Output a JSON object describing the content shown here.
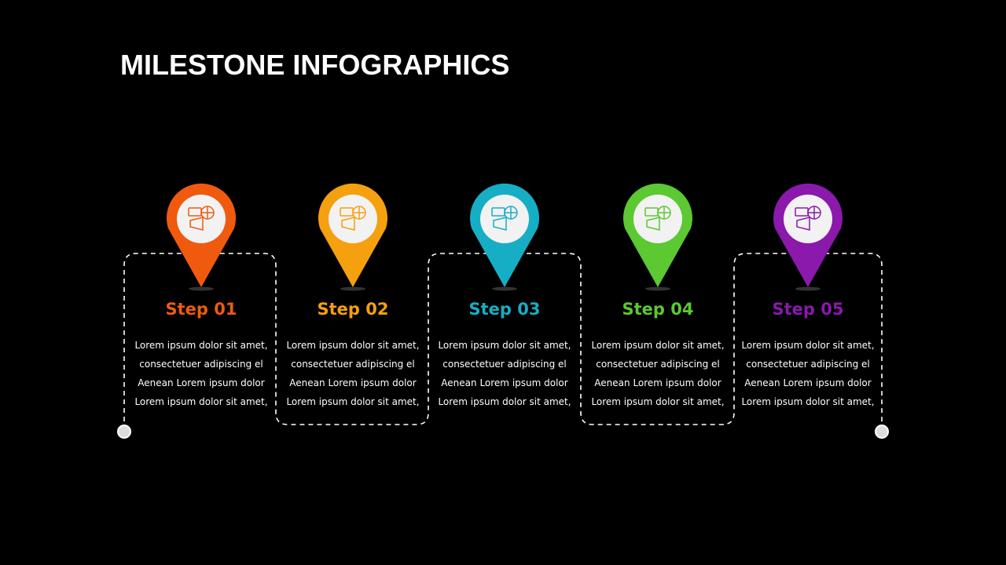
{
  "title": "MILESTONE INFOGRAPHICS",
  "steps": [
    {
      "label": "Step 01",
      "color": "#f05a0f",
      "icon": "ads-megaphone-globe-icon",
      "lines": [
        "Lorem ipsum dolor sit amet,",
        "consectetuer adipiscing el",
        "Aenean Lorem ipsum dolor",
        "Lorem ipsum dolor sit amet,"
      ]
    },
    {
      "label": "Step 02",
      "color": "#f5a00f",
      "icon": "presenter-chat-icon",
      "lines": [
        "Lorem ipsum dolor sit amet,",
        "consectetuer adipiscing el",
        "Aenean Lorem ipsum dolor",
        "Lorem ipsum dolor sit amet,"
      ]
    },
    {
      "label": "Step 03",
      "color": "#16aec4",
      "icon": "funnel-dollar-icon",
      "lines": [
        "Lorem ipsum dolor sit amet,",
        "consectetuer adipiscing el",
        "Aenean Lorem ipsum dolor",
        "Lorem ipsum dolor sit amet,"
      ]
    },
    {
      "label": "Step 04",
      "color": "#5cc832",
      "icon": "seo-target-icon",
      "lines": [
        "Lorem ipsum dolor sit amet,",
        "consectetuer adipiscing el",
        "Aenean Lorem ipsum dolor",
        "Lorem ipsum dolor sit amet,"
      ]
    },
    {
      "label": "Step 05",
      "color": "#8a19ac",
      "icon": "mobile-globe-icon",
      "lines": [
        "Lorem ipsum dolor sit amet,",
        "consectetuer adipiscing el",
        "Aenean Lorem ipsum dolor",
        "Lorem ipsum dolor sit amet,"
      ]
    }
  ]
}
